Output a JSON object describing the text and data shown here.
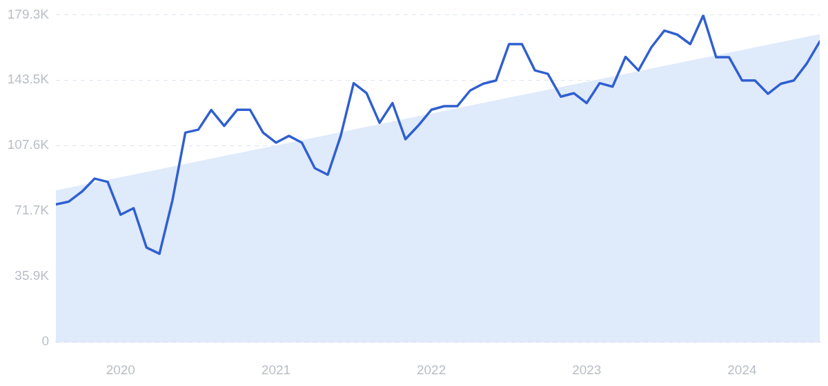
{
  "chart_data": {
    "type": "line",
    "x": [
      "2019-08",
      "2019-09",
      "2019-10",
      "2019-11",
      "2019-12",
      "2020-01",
      "2020-02",
      "2020-03",
      "2020-04",
      "2020-05",
      "2020-06",
      "2020-07",
      "2020-08",
      "2020-09",
      "2020-10",
      "2020-11",
      "2020-12",
      "2021-01",
      "2021-02",
      "2021-03",
      "2021-04",
      "2021-05",
      "2021-06",
      "2021-07",
      "2021-08",
      "2021-09",
      "2021-10",
      "2021-11",
      "2021-12",
      "2022-01",
      "2022-02",
      "2022-03",
      "2022-04",
      "2022-05",
      "2022-06",
      "2022-07",
      "2022-08",
      "2022-09",
      "2022-10",
      "2022-11",
      "2022-12",
      "2023-01",
      "2023-02",
      "2023-03",
      "2023-04",
      "2023-05",
      "2023-06",
      "2023-07",
      "2023-08",
      "2023-09",
      "2023-10",
      "2023-11",
      "2023-12",
      "2024-01",
      "2024-02",
      "2024-03",
      "2024-04",
      "2024-05",
      "2024-06",
      "2024-07"
    ],
    "series": [
      {
        "type": "line",
        "color": "#2f5fd0",
        "values": [
          75.4,
          76.9,
          82.3,
          89.5,
          87.7,
          69.7,
          73.3,
          51.7,
          48.3,
          77.5,
          114.7,
          116.3,
          127.1,
          118.4,
          127.2,
          127.2,
          114.7,
          109.2,
          112.9,
          109.2,
          95.2,
          91.6,
          112.9,
          141.8,
          136.3,
          120.1,
          130.9,
          111.1,
          118.6,
          127.2,
          129.2,
          129.2,
          137.8,
          141.5,
          143.3,
          163.2,
          163.2,
          148.8,
          146.9,
          134.4,
          136.3,
          130.9,
          141.8,
          139.9,
          156.2,
          148.8,
          161.5,
          170.6,
          168.4,
          163.2,
          178.9,
          156.0,
          156.0,
          143.3,
          143.3,
          136.0,
          141.5,
          143.3,
          152.6,
          164.6
        ]
      },
      {
        "type": "area",
        "color": "#dfeafb",
        "x": [
          "2019-08",
          "2024-07"
        ],
        "values": [
          83.0,
          168.7
        ]
      }
    ],
    "xlim": [
      "2019-08",
      "2024-07"
    ],
    "xticks": [
      "2020",
      "2021",
      "2022",
      "2023",
      "2024"
    ],
    "ylim": [
      0,
      179.3
    ],
    "yticks": [
      0,
      {
        "value": 35.9,
        "label": "35.9K"
      },
      {
        "value": 71.7,
        "label": "71.7K"
      },
      {
        "value": 107.6,
        "label": "107.6K"
      },
      {
        "value": 143.5,
        "label": "143.5K"
      },
      {
        "value": 179.3,
        "label": "179.3K"
      }
    ],
    "grid": "y",
    "legend": false,
    "marker": "none",
    "line_style": "solid"
  }
}
